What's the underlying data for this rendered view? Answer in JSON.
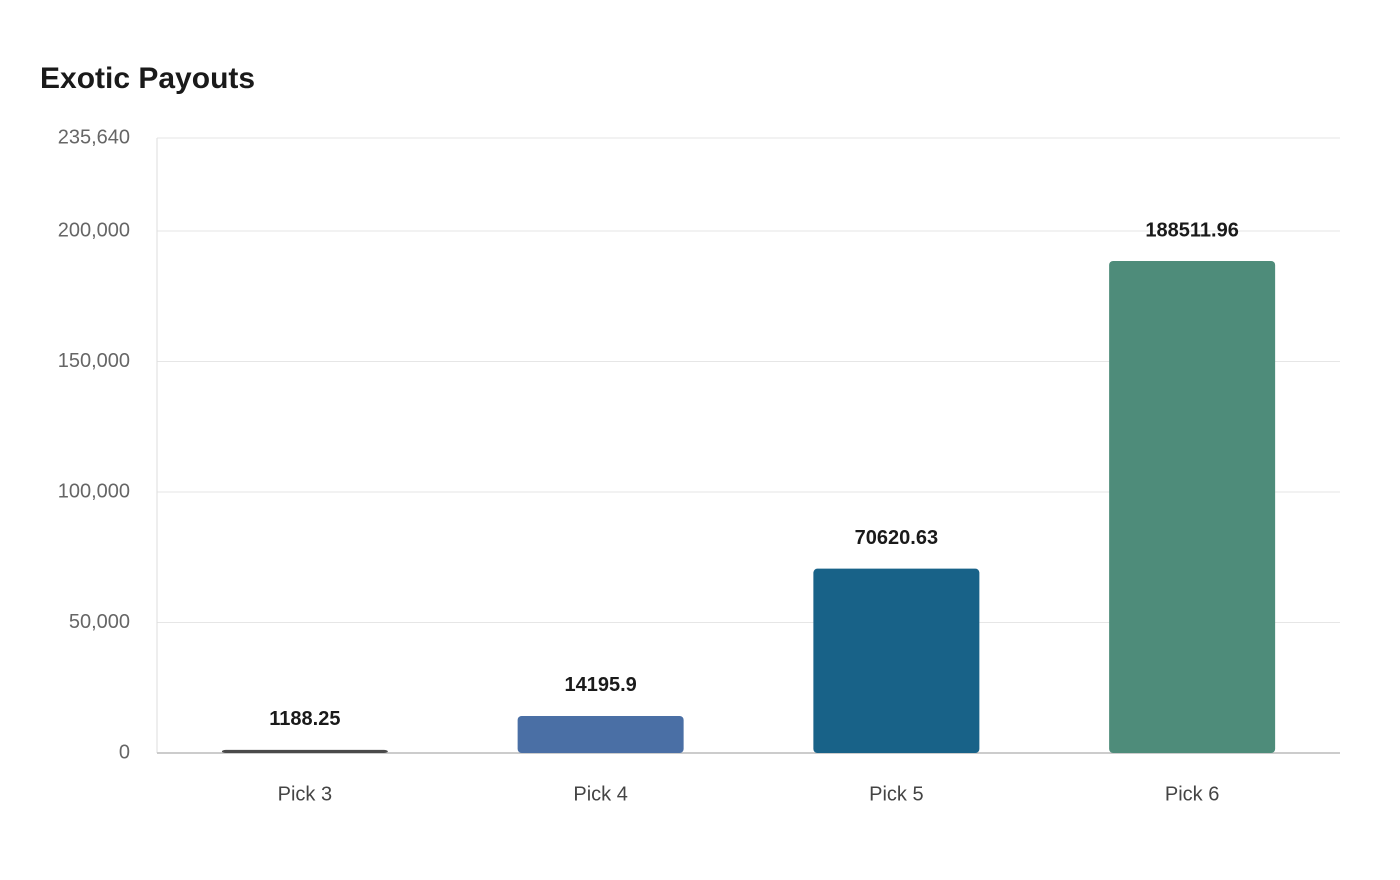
{
  "chart_data": {
    "type": "bar",
    "title": "Exotic Payouts",
    "categories": [
      "Pick 3",
      "Pick 4",
      "Pick 5",
      "Pick 6"
    ],
    "values": [
      1188.25,
      14195.9,
      70620.63,
      188511.96
    ],
    "colors": [
      "#4a4a4a",
      "#4a6fa5",
      "#186288",
      "#4e8c7a"
    ],
    "ylim": [
      0,
      235640
    ],
    "yticks": [
      0,
      {
        "value": 50000,
        "label": "50,000"
      },
      {
        "value": 100000,
        "label": "100,000"
      },
      {
        "value": 150000,
        "label": "150,000"
      },
      {
        "value": 200000,
        "label": "200,000"
      },
      {
        "value": 235640,
        "label": "235,640"
      }
    ],
    "grid": true
  }
}
